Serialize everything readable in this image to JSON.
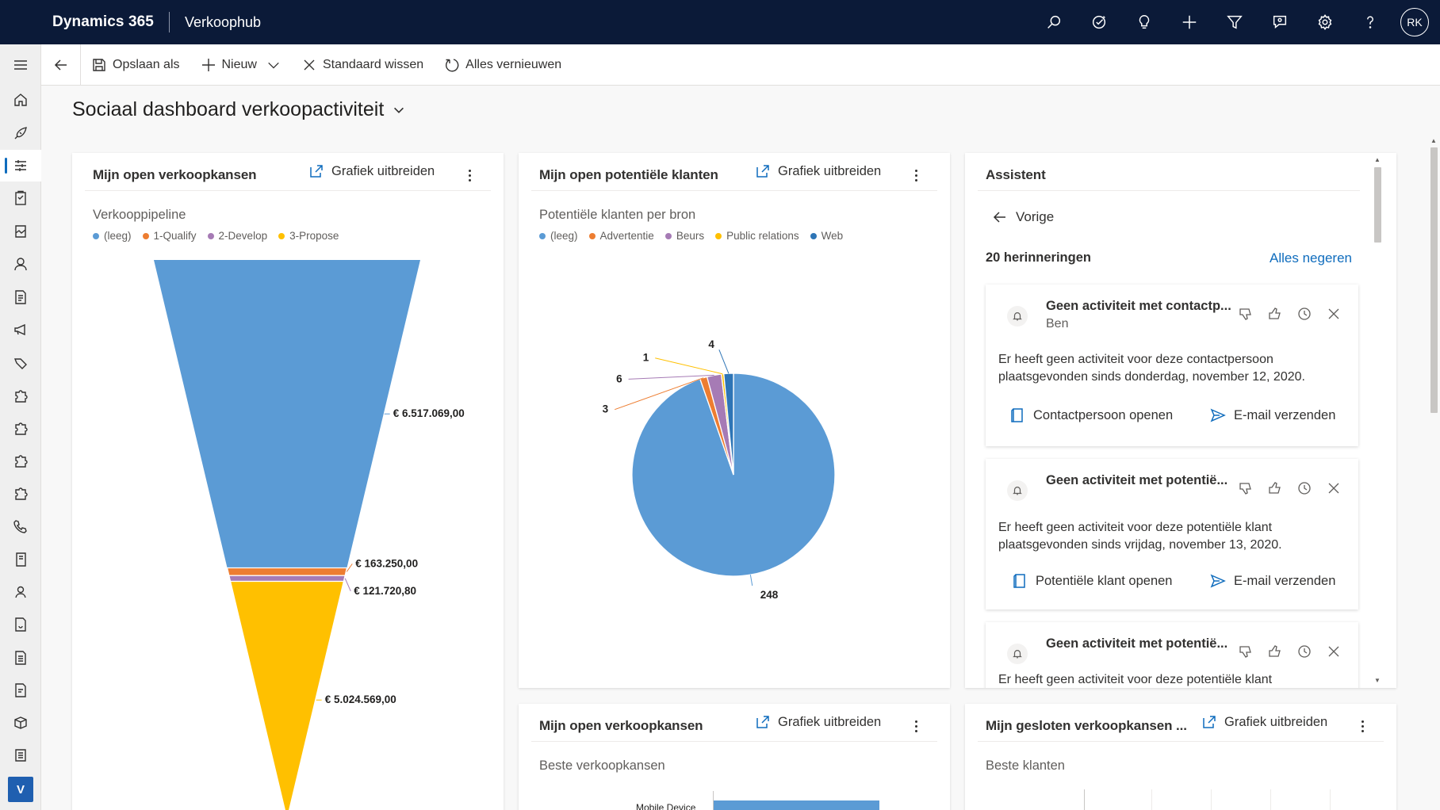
{
  "topbar": {
    "app_name": "Dynamics 365",
    "area_name": "Verkoophub",
    "avatar_initials": "RK",
    "icons": [
      "search-icon",
      "task-check-icon",
      "lightbulb-icon",
      "plus-icon",
      "filter-icon",
      "assistant-icon",
      "settings-icon",
      "help-icon"
    ]
  },
  "siderail": {
    "icons": [
      "menu-icon",
      "home-icon",
      "rocket-icon",
      "dashboard-icon",
      "clipboard-icon",
      "report-icon",
      "person-icon",
      "document-icon",
      "megaphone-icon",
      "tag-icon",
      "puzzle-icon",
      "puzzle-icon",
      "puzzle-icon",
      "puzzle-icon",
      "phone-icon",
      "book-icon",
      "contact-icon",
      "price-icon",
      "form-icon",
      "invoice-icon",
      "box-icon",
      "list-icon"
    ],
    "active_index": 3,
    "area_badge": "V"
  },
  "commandbar": {
    "save_as": "Opslaan als",
    "new": "Nieuw",
    "clear_default": "Standaard wissen",
    "refresh_all": "Alles vernieuwen"
  },
  "page": {
    "title": "Sociaal dashboard verkoopactiviteit"
  },
  "cards": {
    "opportunities": {
      "title": "Mijn open verkoopkansen",
      "expand": "Grafiek uitbreiden"
    },
    "leads": {
      "title": "Mijn open potentiële klanten",
      "expand": "Grafiek uitbreiden"
    },
    "top_opportunities": {
      "title": "Mijn open verkoopkansen",
      "expand": "Grafiek uitbreiden",
      "chart_title": "Beste verkoopkansen",
      "first_category": "Mobile Device"
    },
    "closed_opportunities": {
      "title": "Mijn gesloten verkoopkansen ...",
      "expand": "Grafiek uitbreiden",
      "chart_title": "Beste klanten"
    }
  },
  "assistant": {
    "title": "Assistent",
    "back": "Vorige",
    "count": "20 herinneringen",
    "ignore_all": "Alles negeren",
    "reminders": [
      {
        "title": "Geen activiteit met contactp...",
        "subtitle": "Ben",
        "body": "Er heeft geen activiteit voor deze contactpersoon plaatsgevonden sinds donderdag, november 12, 2020.",
        "primary_action": "Contactpersoon openen",
        "secondary_action": "E-mail verzenden"
      },
      {
        "title": "Geen activiteit met potentië...",
        "subtitle": "",
        "body": "Er heeft geen activiteit voor deze potentiële klant plaatsgevonden sinds vrijdag, november 13, 2020.",
        "primary_action": "Potentiële klant openen",
        "secondary_action": "E-mail verzenden"
      },
      {
        "title": "Geen activiteit met potentië...",
        "subtitle": "",
        "body": "Er heeft geen activiteit voor deze potentiële klant",
        "primary_action": "",
        "secondary_action": ""
      }
    ]
  },
  "chart_data": [
    {
      "type": "funnel",
      "title": "Verkooppipeline",
      "legend": [
        "(leeg)",
        "1-Qualify",
        "2-Develop",
        "3-Propose"
      ],
      "colors": [
        "#5b9bd5",
        "#ed7d31",
        "#a67bb5",
        "#ffc000"
      ],
      "values": [
        6517069.0,
        163250.0,
        121720.8,
        5024569.0
      ],
      "value_labels": [
        "€ 6.517.069,00",
        "€ 163.250,00",
        "€ 121.720,80",
        "€ 5.024.569,00"
      ]
    },
    {
      "type": "pie",
      "title": "Potentiële klanten per bron",
      "legend": [
        "(leeg)",
        "Advertentie",
        "Beurs",
        "Public relations",
        "Web"
      ],
      "colors": [
        "#5b9bd5",
        "#ed7d31",
        "#a67bb5",
        "#ffc000",
        "#2e75b6"
      ],
      "values": [
        248,
        3,
        6,
        1,
        4
      ]
    }
  ]
}
